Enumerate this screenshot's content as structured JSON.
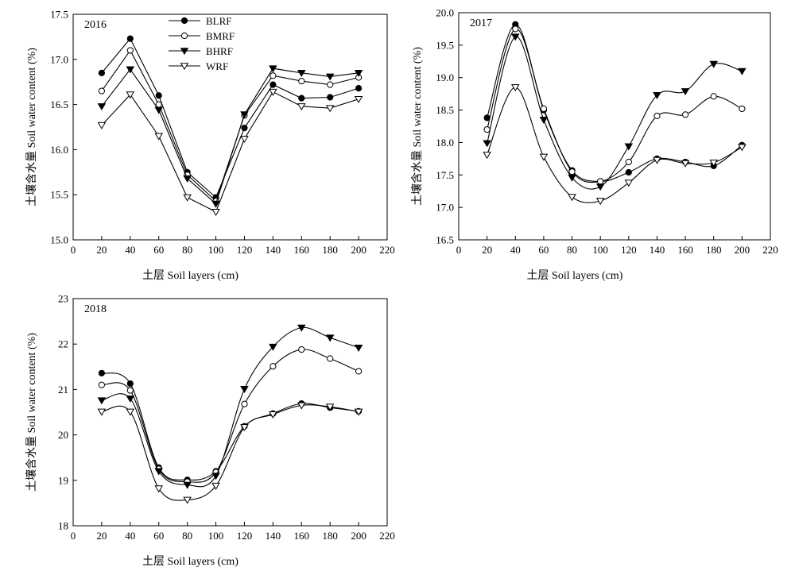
{
  "legend": {
    "placement": "top-center of first panel",
    "entries": [
      {
        "name": "BLRF",
        "marker": "filled-circle"
      },
      {
        "name": "BMRF",
        "marker": "open-circle"
      },
      {
        "name": "BHRF",
        "marker": "filled-triangle-down"
      },
      {
        "name": "WRF",
        "marker": "open-triangle-down"
      }
    ]
  },
  "chart_data": [
    {
      "type": "line",
      "title": "2016",
      "xlabel": "土层 Soil layers (cm)",
      "ylabel": "土壤含水量 Soil water content (%)",
      "xlim": [
        0,
        220
      ],
      "ylim": [
        15.0,
        17.5
      ],
      "xticks": [
        0,
        20,
        40,
        60,
        80,
        100,
        120,
        140,
        160,
        180,
        200,
        220
      ],
      "yticks": [
        15.0,
        15.5,
        16.0,
        16.5,
        17.0,
        17.5
      ],
      "ytick_labels": [
        "15.0",
        "15.5",
        "16.0",
        "16.5",
        "17.0",
        "17.5"
      ],
      "grid": false,
      "smooth": false,
      "x": [
        20,
        40,
        60,
        80,
        100,
        120,
        140,
        160,
        180,
        200
      ],
      "series": [
        {
          "name": "BLRF",
          "values": [
            16.85,
            17.23,
            16.6,
            15.75,
            15.47,
            16.24,
            16.72,
            16.57,
            16.58,
            16.68
          ]
        },
        {
          "name": "BMRF",
          "values": [
            16.65,
            17.1,
            16.5,
            15.72,
            15.43,
            16.38,
            16.82,
            16.76,
            16.72,
            16.8
          ]
        },
        {
          "name": "BHRF",
          "values": [
            16.48,
            16.89,
            16.44,
            15.68,
            15.4,
            16.39,
            16.9,
            16.85,
            16.81,
            16.85
          ]
        },
        {
          "name": "WRF",
          "values": [
            16.27,
            16.61,
            16.15,
            15.47,
            15.31,
            16.12,
            16.64,
            16.48,
            16.46,
            16.56
          ]
        }
      ]
    },
    {
      "type": "line",
      "title": "2017",
      "xlabel": "土层 Soil layers (cm)",
      "ylabel": "土壤含水量 Soil water content (%)",
      "xlim": [
        0,
        220
      ],
      "ylim": [
        16.5,
        20.0
      ],
      "xticks": [
        0,
        20,
        40,
        60,
        80,
        100,
        120,
        140,
        160,
        180,
        200,
        220
      ],
      "yticks": [
        16.5,
        17.0,
        17.5,
        18.0,
        18.5,
        19.0,
        19.5,
        20.0
      ],
      "ytick_labels": [
        "16.5",
        "17.0",
        "17.5",
        "18.0",
        "18.5",
        "19.0",
        "19.5",
        "20.0"
      ],
      "grid": false,
      "smooth": true,
      "x": [
        20,
        40,
        60,
        80,
        100,
        120,
        140,
        160,
        180,
        200
      ],
      "series": [
        {
          "name": "BLRF",
          "values": [
            18.38,
            19.82,
            18.5,
            17.57,
            17.4,
            17.54,
            17.75,
            17.7,
            17.64,
            17.96
          ]
        },
        {
          "name": "BMRF",
          "values": [
            18.2,
            19.75,
            18.52,
            17.55,
            17.4,
            17.7,
            18.41,
            18.43,
            18.71,
            18.52
          ]
        },
        {
          "name": "BHRF",
          "values": [
            17.99,
            19.63,
            18.35,
            17.46,
            17.32,
            17.94,
            18.73,
            18.79,
            19.21,
            19.1
          ]
        },
        {
          "name": "WRF",
          "values": [
            17.81,
            18.85,
            17.78,
            17.16,
            17.1,
            17.38,
            17.73,
            17.68,
            17.69,
            17.93
          ]
        }
      ]
    },
    {
      "type": "line",
      "title": "2018",
      "xlabel": "土层 Soil layers (cm)",
      "ylabel": "土壤含水量 Soil water content (%)",
      "xlim": [
        0,
        220
      ],
      "ylim": [
        18,
        23
      ],
      "xticks": [
        0,
        20,
        40,
        60,
        80,
        100,
        120,
        140,
        160,
        180,
        200,
        220
      ],
      "yticks": [
        18,
        19,
        20,
        21,
        22,
        23
      ],
      "ytick_labels": [
        "18",
        "19",
        "20",
        "21",
        "22",
        "23"
      ],
      "grid": false,
      "smooth": true,
      "x": [
        20,
        40,
        60,
        80,
        100,
        120,
        140,
        160,
        180,
        200
      ],
      "series": [
        {
          "name": "BLRF",
          "values": [
            21.36,
            21.13,
            19.28,
            19.01,
            19.2,
            20.19,
            20.47,
            20.69,
            20.6,
            20.52
          ]
        },
        {
          "name": "BMRF",
          "values": [
            21.1,
            20.98,
            19.25,
            18.97,
            19.18,
            20.68,
            21.51,
            21.88,
            21.68,
            21.4
          ]
        },
        {
          "name": "BHRF",
          "values": [
            20.76,
            20.8,
            19.2,
            18.9,
            19.1,
            21.01,
            21.94,
            22.36,
            22.14,
            21.92
          ]
        },
        {
          "name": "WRF",
          "values": [
            20.51,
            20.51,
            18.82,
            18.57,
            18.88,
            20.17,
            20.45,
            20.65,
            20.62,
            20.51
          ]
        }
      ]
    }
  ]
}
